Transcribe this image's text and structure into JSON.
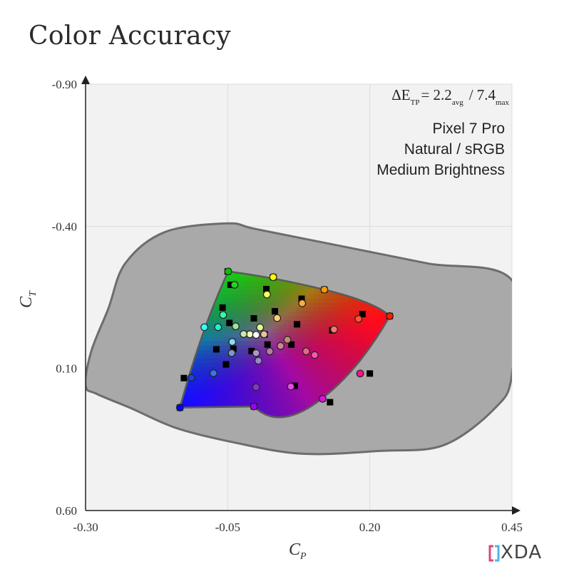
{
  "title": "Color Accuracy",
  "logo_text": "XDA",
  "annotation": {
    "lines": [
      "Pixel 7 Pro",
      "Natural / sRGB",
      "Medium Brightness"
    ],
    "delta_e": {
      "symbol": "ΔE",
      "subscript": "TP",
      "avg_text": "= 2.2",
      "avg_sub": "avg",
      "max_text": "/ 7.4",
      "max_sub": "max"
    }
  },
  "chart_data": {
    "type": "scatter",
    "title": "Color Accuracy",
    "xlabel": "C",
    "xlabel_sub": "P",
    "ylabel": "C",
    "ylabel_sub": "T",
    "xlim": [
      -0.3,
      0.45
    ],
    "ylim": [
      -0.9,
      0.6
    ],
    "y_inverted": true,
    "x_ticks": [
      "-0.30",
      "-0.05",
      "0.20",
      "0.45"
    ],
    "y_ticks": [
      "-0.90",
      "-0.40",
      "0.10",
      "0.60"
    ],
    "grid": true,
    "metrics": {
      "delta_e_avg": 2.2,
      "delta_e_max": 7.4
    },
    "colors": {
      "plot_bg": "#f2f2f2",
      "locus_fill": "#a9a9a9",
      "locus_stroke": "#6d6d6d",
      "red": "#ff0000",
      "green": "#00bb00",
      "blue": "#0000ff"
    },
    "visible_locus": [
      [
        -0.3,
        0.16
      ],
      [
        -0.29,
        0.04
      ],
      [
        -0.26,
        -0.11
      ],
      [
        -0.23,
        -0.27
      ],
      [
        -0.16,
        -0.38
      ],
      [
        -0.05,
        -0.41
      ],
      [
        0.0,
        -0.39
      ],
      [
        0.15,
        -0.33
      ],
      [
        0.3,
        -0.27
      ],
      [
        0.45,
        -0.21
      ],
      [
        0.45,
        0.12
      ],
      [
        0.42,
        0.24
      ],
      [
        0.33,
        0.37
      ],
      [
        0.22,
        0.39
      ],
      [
        0.08,
        0.4
      ],
      [
        -0.04,
        0.36
      ],
      [
        -0.14,
        0.31
      ],
      [
        -0.22,
        0.24
      ],
      [
        -0.28,
        0.19
      ]
    ],
    "gamut_vertices": {
      "green": [
        -0.049,
        -0.241
      ],
      "red": [
        0.235,
        -0.084
      ],
      "blue": [
        -0.134,
        0.238
      ],
      "secondary_edge_points": [
        [
          0.03,
          -0.221
        ],
        [
          0.12,
          -0.177
        ],
        [
          -0.004,
          0.234
        ],
        [
          0.11,
          0.215
        ],
        [
          0.18,
          0.111
        ]
      ]
    },
    "targets": [
      [
        -0.05,
        -0.241
      ],
      [
        0.03,
        -0.221
      ],
      [
        0.12,
        -0.177
      ],
      [
        0.235,
        -0.084
      ],
      [
        -0.045,
        -0.194
      ],
      [
        0.018,
        -0.179
      ],
      [
        0.08,
        -0.145
      ],
      [
        0.187,
        -0.091
      ],
      [
        -0.059,
        -0.114
      ],
      [
        -0.047,
        -0.06
      ],
      [
        -0.004,
        -0.076
      ],
      [
        0.033,
        -0.101
      ],
      [
        0.015,
        -0.02
      ],
      [
        0.072,
        -0.055
      ],
      [
        0.134,
        -0.034
      ],
      [
        -0.008,
        0.039
      ],
      [
        0.062,
        0.016
      ],
      [
        0.02,
        0.016
      ],
      [
        -0.04,
        0.031
      ],
      [
        -0.07,
        0.033
      ],
      [
        -0.053,
        0.086
      ],
      [
        -0.127,
        0.134
      ],
      [
        0.068,
        0.161
      ],
      [
        0.13,
        0.219
      ],
      [
        0.2,
        0.118
      ],
      [
        -0.004,
        0.234
      ],
      [
        -0.134,
        0.238
      ]
    ],
    "measured": [
      {
        "x": -0.049,
        "y": -0.241,
        "color": "#00c400"
      },
      {
        "x": 0.03,
        "y": -0.221,
        "color": "#ffff00"
      },
      {
        "x": 0.12,
        "y": -0.177,
        "color": "#ff9900"
      },
      {
        "x": 0.235,
        "y": -0.084,
        "color": "#ff1a00"
      },
      {
        "x": -0.038,
        "y": -0.194,
        "color": "#2bd12b"
      },
      {
        "x": 0.019,
        "y": -0.16,
        "color": "#ffff66"
      },
      {
        "x": 0.081,
        "y": -0.129,
        "color": "#ffaa44"
      },
      {
        "x": 0.18,
        "y": -0.074,
        "color": "#ff5533"
      },
      {
        "x": -0.058,
        "y": -0.088,
        "color": "#33ffaa"
      },
      {
        "x": -0.067,
        "y": -0.045,
        "color": "#22eecc"
      },
      {
        "x": -0.036,
        "y": -0.048,
        "color": "#99e699"
      },
      {
        "x": 0.007,
        "y": -0.044,
        "color": "#ddff88"
      },
      {
        "x": -0.011,
        "y": -0.02,
        "color": "#eeffaa"
      },
      {
        "x": 0.037,
        "y": -0.077,
        "color": "#ffcc77"
      },
      {
        "x": 0.137,
        "y": -0.037,
        "color": "#ff7766"
      },
      {
        "x": -0.091,
        "y": -0.045,
        "color": "#33ffff"
      },
      {
        "x": -0.042,
        "y": 0.007,
        "color": "#88ddee"
      },
      {
        "x": -0.022,
        "y": -0.021,
        "color": "#c8e8b0"
      },
      {
        "x": 0.014,
        "y": -0.02,
        "color": "#e8c49a"
      },
      {
        "x": 0.0,
        "y": -0.018,
        "color": "#ffffff"
      },
      {
        "x": 0.055,
        "y": -0.001,
        "color": "#c88878"
      },
      {
        "x": 0.088,
        "y": 0.04,
        "color": "#e86688"
      },
      {
        "x": -0.043,
        "y": 0.046,
        "color": "#7799cc"
      },
      {
        "x": -0.075,
        "y": 0.117,
        "color": "#3377ee"
      },
      {
        "x": 0.004,
        "y": 0.073,
        "color": "#9a88cc"
      },
      {
        "x": 0.0,
        "y": 0.046,
        "color": "#b095cc"
      },
      {
        "x": 0.024,
        "y": 0.04,
        "color": "#b87aaa"
      },
      {
        "x": 0.043,
        "y": 0.021,
        "color": "#c88899"
      },
      {
        "x": 0.103,
        "y": 0.053,
        "color": "#ff55aa"
      },
      {
        "x": 0.183,
        "y": 0.118,
        "color": "#ff1188"
      },
      {
        "x": 0.061,
        "y": 0.164,
        "color": "#ee44ee"
      },
      {
        "x": 0.117,
        "y": 0.207,
        "color": "#dd11dd"
      },
      {
        "x": -0.004,
        "y": 0.234,
        "color": "#9900ff"
      },
      {
        "x": 0.0,
        "y": 0.166,
        "color": "#8833cc"
      },
      {
        "x": -0.114,
        "y": 0.133,
        "color": "#1144ee"
      },
      {
        "x": -0.134,
        "y": 0.238,
        "color": "#0000ff"
      }
    ]
  }
}
